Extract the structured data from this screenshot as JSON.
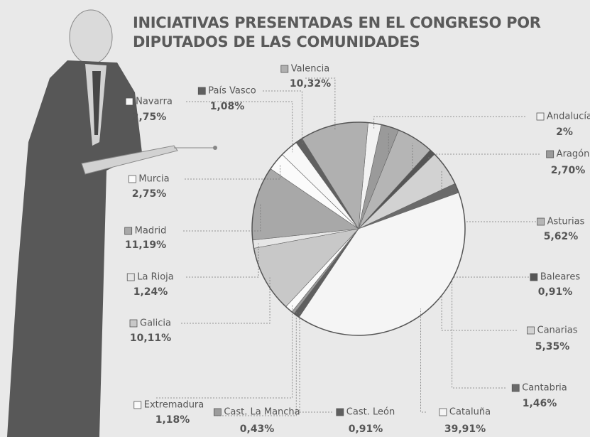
{
  "chart_data": {
    "type": "pie",
    "title": [
      "INICIATIVAS PRESENTADAS EN EL CONGRESO POR",
      "DIPUTADOS DE LAS COMUNIDADES"
    ],
    "categories": [
      "Andalucía",
      "Aragón",
      "Asturias",
      "Baleares",
      "Canarias",
      "Cantabria",
      "Cataluña",
      "Cast. León",
      "Cast. La Mancha",
      "Extremadura",
      "Galicia",
      "La Rioja",
      "Madrid",
      "Murcia",
      "Navarra",
      "País Vasco",
      "Valencia"
    ],
    "values": [
      2,
      2.7,
      5.62,
      0.91,
      5.35,
      1.46,
      39.91,
      0.91,
      0.43,
      1.18,
      10.11,
      1.24,
      11.19,
      2.75,
      2.75,
      1.08,
      10.32
    ],
    "value_labels": [
      "2%",
      "2,70%",
      "5,62%",
      "0,91%",
      "5,35%",
      "1,46%",
      "39,91%",
      "0,91%",
      "0,43%",
      "1,18%",
      "10,11%",
      "1,24%",
      "11,19%",
      "2,75%",
      "2,75%",
      "1,08%",
      "10,32%"
    ],
    "colors": [
      "#f2f2f2",
      "#9a9a9a",
      "#b5b5b5",
      "#555555",
      "#d2d2d2",
      "#6a6a6a",
      "#f5f5f5",
      "#5f5f5f",
      "#9c9c9c",
      "#fafafa",
      "#c8c8c8",
      "#e6e6e6",
      "#a8a8a8",
      "#fbfbfb",
      "#f8f8f8",
      "#606060",
      "#b0b0b0"
    ]
  }
}
